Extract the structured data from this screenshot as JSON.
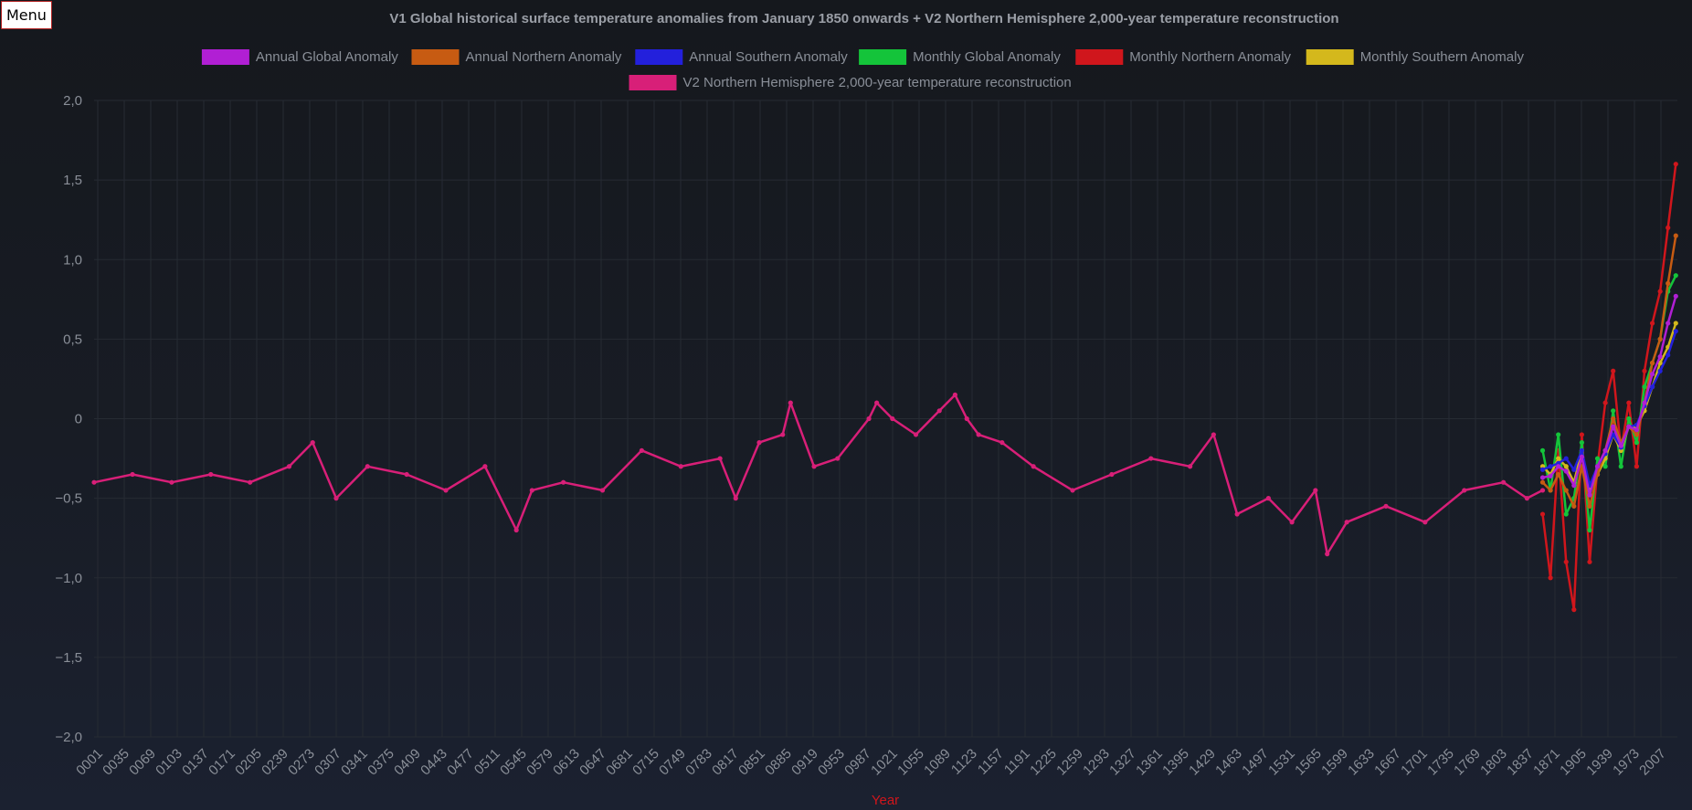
{
  "menu": {
    "label": "Menu"
  },
  "colors": {
    "text": "#8a8f98",
    "title": "#9a9ea6",
    "grid": "#262b33",
    "axis_title": "#d0161c"
  },
  "chart_data": {
    "type": "line",
    "title": "V1 Global historical surface temperature anomalies from January 1850 onwards + V2 Northern Hemisphere 2,000-year temperature reconstruction",
    "xlabel": "Year",
    "ylabel": "",
    "ylim": [
      -2.0,
      2.0
    ],
    "yticks": [
      -2.0,
      -1.5,
      -1.0,
      -0.5,
      0,
      0.5,
      1.0,
      1.5,
      2.0
    ],
    "ytick_labels": [
      "−2,0",
      "−1,5",
      "−1,0",
      "−0,5",
      "0",
      "0,5",
      "1,0",
      "1,5",
      "2,0"
    ],
    "xlim": [
      1,
      2022
    ],
    "xtick_labels": [
      "0001",
      "0035",
      "0069",
      "0103",
      "0137",
      "0171",
      "0205",
      "0239",
      "0273",
      "0307",
      "0341",
      "0375",
      "0409",
      "0443",
      "0477",
      "0511",
      "0545",
      "0579",
      "0613",
      "0647",
      "0681",
      "0715",
      "0749",
      "0783",
      "0817",
      "0851",
      "0885",
      "0919",
      "0953",
      "0987",
      "1021",
      "1055",
      "1089",
      "1123",
      "1157",
      "1191",
      "1225",
      "1259",
      "1293",
      "1327",
      "1361",
      "1395",
      "1429",
      "1463",
      "1497",
      "1531",
      "1565",
      "1599",
      "1633",
      "1667",
      "1701",
      "1735",
      "1769",
      "1803",
      "1837",
      "1871",
      "1905",
      "1939",
      "1973",
      "2007"
    ],
    "grid": true,
    "legend_position": "top",
    "series": [
      {
        "name": "Annual Global Anomaly",
        "color": "#b11fd4",
        "x": [
          1850,
          1860,
          1870,
          1880,
          1890,
          1900,
          1910,
          1920,
          1930,
          1940,
          1950,
          1960,
          1970,
          1980,
          1990,
          2000,
          2010,
          2020
        ],
        "values": [
          -0.37,
          -0.36,
          -0.3,
          -0.33,
          -0.42,
          -0.24,
          -0.48,
          -0.3,
          -0.2,
          -0.05,
          -0.17,
          -0.05,
          -0.07,
          0.1,
          0.28,
          0.39,
          0.6,
          0.77
        ]
      },
      {
        "name": "Annual Northern Anomaly",
        "color": "#c75b12",
        "x": [
          1850,
          1860,
          1870,
          1880,
          1890,
          1900,
          1910,
          1920,
          1930,
          1940,
          1950,
          1960,
          1970,
          1980,
          1990,
          2000,
          2010,
          2020
        ],
        "values": [
          -0.4,
          -0.45,
          -0.35,
          -0.45,
          -0.55,
          -0.3,
          -0.55,
          -0.35,
          -0.2,
          0.0,
          -0.15,
          -0.05,
          -0.1,
          0.1,
          0.35,
          0.5,
          0.85,
          1.15
        ]
      },
      {
        "name": "Annual Southern Anomaly",
        "color": "#2320dc",
        "x": [
          1850,
          1860,
          1870,
          1880,
          1890,
          1900,
          1910,
          1920,
          1930,
          1940,
          1950,
          1960,
          1970,
          1980,
          1990,
          2000,
          2010,
          2020
        ],
        "values": [
          -0.32,
          -0.3,
          -0.28,
          -0.25,
          -0.32,
          -0.2,
          -0.42,
          -0.3,
          -0.22,
          -0.1,
          -0.18,
          -0.05,
          -0.04,
          0.08,
          0.2,
          0.3,
          0.4,
          0.55
        ]
      },
      {
        "name": "Monthly Global Anomaly",
        "color": "#14c43a",
        "x": [
          1850,
          1860,
          1870,
          1880,
          1890,
          1900,
          1910,
          1920,
          1930,
          1940,
          1950,
          1960,
          1970,
          1980,
          1990,
          2000,
          2010,
          2020
        ],
        "values": [
          -0.2,
          -0.45,
          -0.1,
          -0.6,
          -0.5,
          -0.15,
          -0.7,
          -0.25,
          -0.3,
          0.05,
          -0.3,
          0.0,
          -0.15,
          0.2,
          0.35,
          0.5,
          0.8,
          0.9
        ]
      },
      {
        "name": "Monthly Northern Anomaly",
        "color": "#d0161c",
        "x": [
          1850,
          1860,
          1870,
          1880,
          1890,
          1900,
          1910,
          1920,
          1930,
          1940,
          1950,
          1960,
          1970,
          1980,
          1990,
          2000,
          2010,
          2020
        ],
        "values": [
          -0.6,
          -1.0,
          -0.2,
          -0.9,
          -1.2,
          -0.1,
          -0.9,
          -0.3,
          0.1,
          0.3,
          -0.2,
          0.1,
          -0.3,
          0.3,
          0.6,
          0.8,
          1.2,
          1.6
        ]
      },
      {
        "name": "Monthly Southern Anomaly",
        "color": "#d4b81c",
        "x": [
          1850,
          1860,
          1870,
          1880,
          1890,
          1900,
          1910,
          1920,
          1930,
          1940,
          1950,
          1960,
          1970,
          1980,
          1990,
          2000,
          2010,
          2020
        ],
        "values": [
          -0.3,
          -0.35,
          -0.25,
          -0.3,
          -0.4,
          -0.2,
          -0.45,
          -0.35,
          -0.25,
          -0.1,
          -0.2,
          -0.05,
          -0.05,
          0.05,
          0.2,
          0.35,
          0.45,
          0.6
        ]
      },
      {
        "name": "V2 Northern Hemisphere 2,000-year temperature reconstruction",
        "color": "#d81f78",
        "x": [
          1,
          50,
          100,
          150,
          200,
          250,
          280,
          310,
          350,
          400,
          450,
          500,
          540,
          560,
          600,
          650,
          700,
          750,
          800,
          820,
          850,
          880,
          890,
          920,
          950,
          990,
          1000,
          1020,
          1050,
          1080,
          1100,
          1115,
          1130,
          1160,
          1200,
          1250,
          1300,
          1350,
          1400,
          1430,
          1460,
          1500,
          1530,
          1560,
          1575,
          1600,
          1650,
          1700,
          1750,
          1800,
          1830,
          1850
        ],
        "values": [
          -0.4,
          -0.35,
          -0.4,
          -0.35,
          -0.4,
          -0.3,
          -0.15,
          -0.5,
          -0.3,
          -0.35,
          -0.45,
          -0.3,
          -0.7,
          -0.45,
          -0.4,
          -0.45,
          -0.2,
          -0.3,
          -0.25,
          -0.5,
          -0.15,
          -0.1,
          0.1,
          -0.3,
          -0.25,
          0.0,
          0.1,
          0.0,
          -0.1,
          0.05,
          0.15,
          0.0,
          -0.1,
          -0.15,
          -0.3,
          -0.45,
          -0.35,
          -0.25,
          -0.3,
          -0.1,
          -0.6,
          -0.5,
          -0.65,
          -0.45,
          -0.85,
          -0.65,
          -0.55,
          -0.65,
          -0.45,
          -0.4,
          -0.5,
          -0.45
        ]
      }
    ]
  }
}
